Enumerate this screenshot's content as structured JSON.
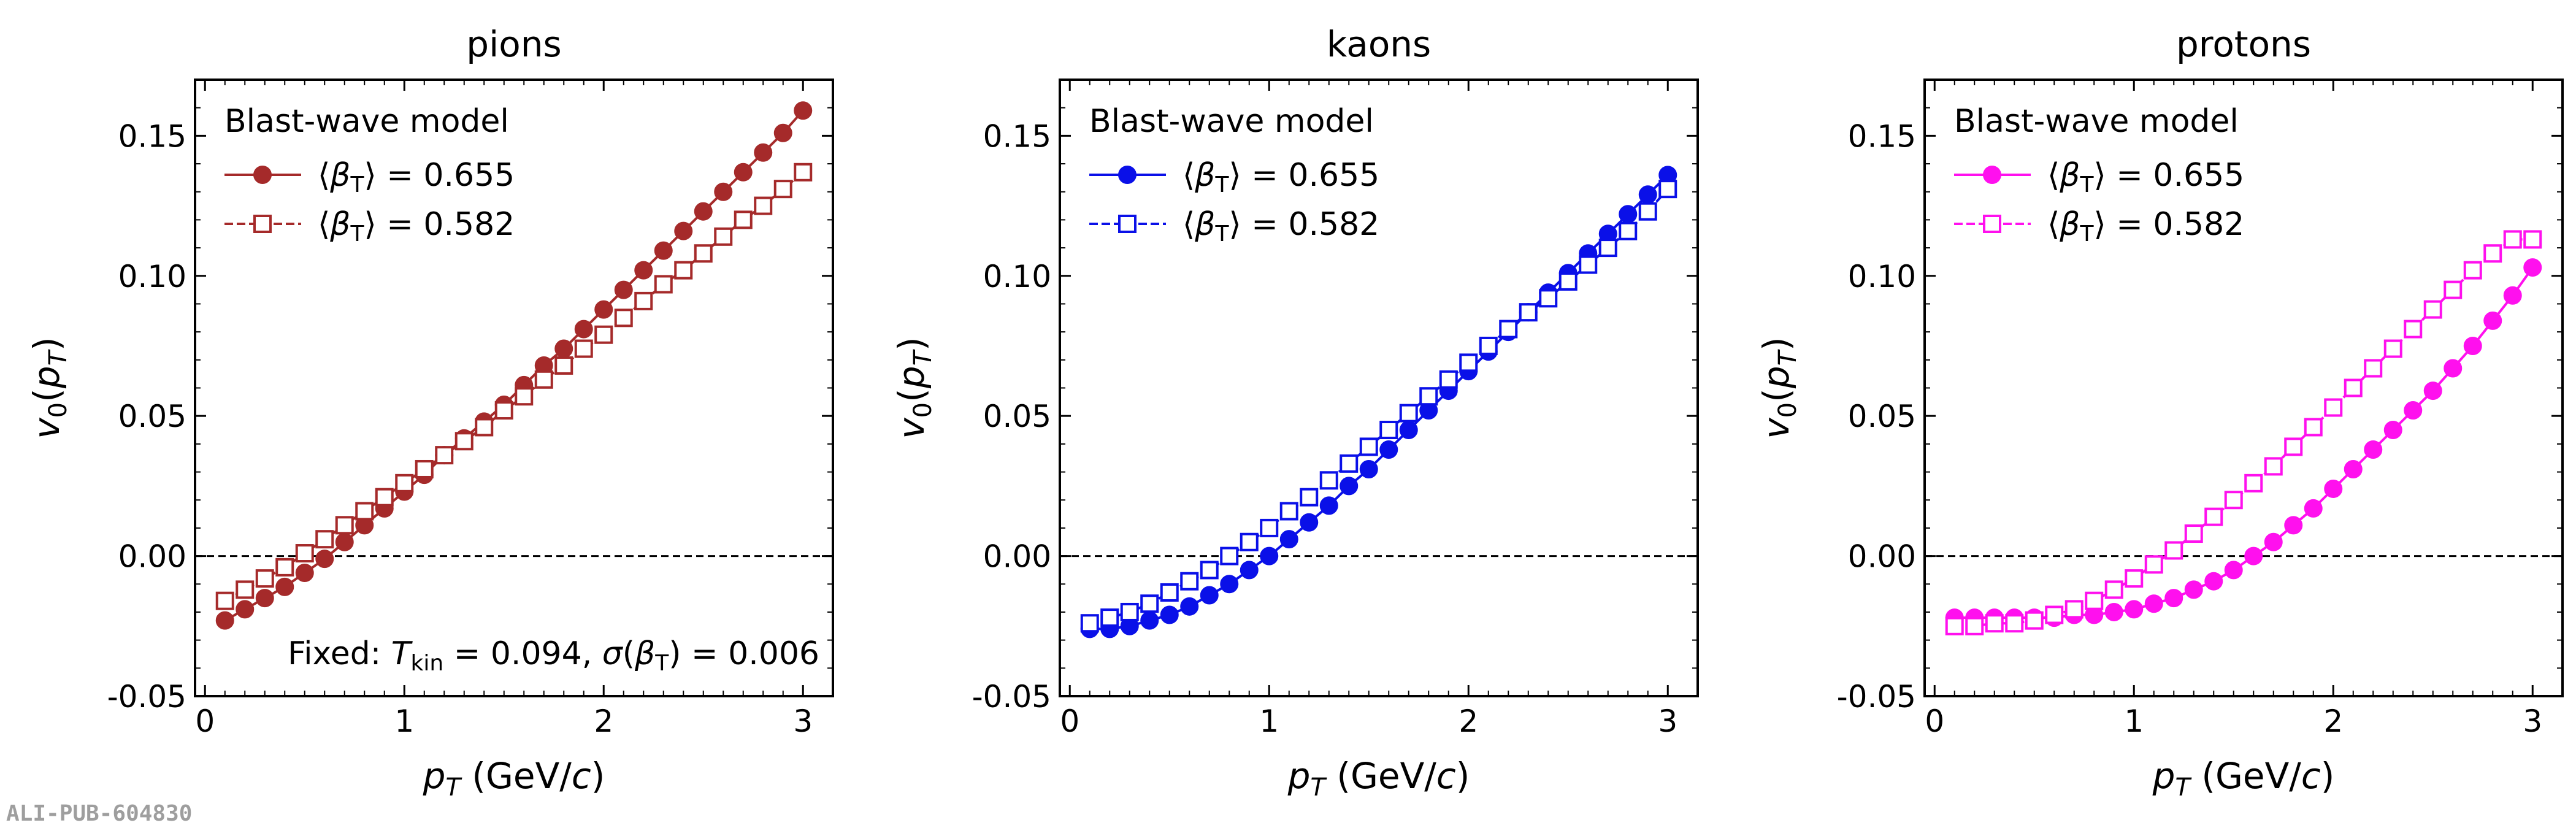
{
  "watermark": "ALI-PUB-604830",
  "chart_data": [
    {
      "type": "line",
      "title": "pions",
      "xlabel_var": "p",
      "xlabel_sub": "T",
      "xlabel_unit_pre": " (GeV/",
      "xlabel_unit_c": "c",
      "xlabel_unit_post": ")",
      "ylabel_var": "v",
      "ylabel_sub": "0",
      "ylabel_paren": "(p",
      "ylabel_paren_sub": "T",
      "ylabel_close": ")",
      "xlim": [
        -0.05,
        3.15
      ],
      "ylim": [
        -0.05,
        0.17
      ],
      "xticks": [
        "0",
        "1",
        "2",
        "3"
      ],
      "yticks": [
        "-0.05",
        "0.00",
        "0.05",
        "0.10",
        "0.15"
      ],
      "color": "#a52a2a",
      "legend_title": "Blast-wave model",
      "annotation": {
        "pre": "Fixed: ",
        "t": "T",
        "t_sub": "kin",
        "mid": " = 0.094, ",
        "sigma": "σ",
        "sig_open": "(β",
        "sig_sub": "T",
        "sig_close": ") = 0.006"
      },
      "x": [
        0.1,
        0.2,
        0.3,
        0.4,
        0.5,
        0.6,
        0.7,
        0.8,
        0.9,
        1.0,
        1.1,
        1.2,
        1.3,
        1.4,
        1.5,
        1.6,
        1.7,
        1.8,
        1.9,
        2.0,
        2.1,
        2.2,
        2.3,
        2.4,
        2.5,
        2.6,
        2.7,
        2.8,
        2.9,
        3.0
      ],
      "series": [
        {
          "name": "⟨βT⟩ = 0.655",
          "label_open": "⟨β",
          "label_sub": "T",
          "label_close": "⟩ = 0.655",
          "marker": "circle-filled",
          "linestyle": "solid",
          "values": [
            -0.023,
            -0.019,
            -0.015,
            -0.011,
            -0.006,
            -0.001,
            0.005,
            0.011,
            0.017,
            0.023,
            0.029,
            0.036,
            0.042,
            0.048,
            0.054,
            0.061,
            0.068,
            0.074,
            0.081,
            0.088,
            0.095,
            0.102,
            0.109,
            0.116,
            0.123,
            0.13,
            0.137,
            0.144,
            0.151,
            0.159
          ]
        },
        {
          "name": "⟨βT⟩ = 0.582",
          "label_open": "⟨β",
          "label_sub": "T",
          "label_close": "⟩ = 0.582",
          "marker": "square-open",
          "linestyle": "dashed",
          "values": [
            -0.016,
            -0.012,
            -0.008,
            -0.004,
            0.001,
            0.006,
            0.011,
            0.016,
            0.021,
            0.026,
            0.031,
            0.036,
            0.041,
            0.046,
            0.052,
            0.057,
            0.063,
            0.068,
            0.074,
            0.079,
            0.085,
            0.091,
            0.097,
            0.102,
            0.108,
            0.114,
            0.12,
            0.125,
            0.131,
            0.137
          ]
        }
      ]
    },
    {
      "type": "line",
      "title": "kaons",
      "xlabel_var": "p",
      "xlabel_sub": "T",
      "xlabel_unit_pre": " (GeV/",
      "xlabel_unit_c": "c",
      "xlabel_unit_post": ")",
      "ylabel_var": "v",
      "ylabel_sub": "0",
      "ylabel_paren": "(p",
      "ylabel_paren_sub": "T",
      "ylabel_close": ")",
      "xlim": [
        -0.05,
        3.15
      ],
      "ylim": [
        -0.05,
        0.17
      ],
      "xticks": [
        "0",
        "1",
        "2",
        "3"
      ],
      "yticks": [
        "-0.05",
        "0.00",
        "0.05",
        "0.10",
        "0.15"
      ],
      "color": "#0a10e8",
      "legend_title": "Blast-wave model",
      "x": [
        0.1,
        0.2,
        0.3,
        0.4,
        0.5,
        0.6,
        0.7,
        0.8,
        0.9,
        1.0,
        1.1,
        1.2,
        1.3,
        1.4,
        1.5,
        1.6,
        1.7,
        1.8,
        1.9,
        2.0,
        2.1,
        2.2,
        2.3,
        2.4,
        2.5,
        2.6,
        2.7,
        2.8,
        2.9,
        3.0
      ],
      "series": [
        {
          "name": "⟨βT⟩ = 0.655",
          "label_open": "⟨β",
          "label_sub": "T",
          "label_close": "⟩ = 0.655",
          "marker": "circle-filled",
          "linestyle": "solid",
          "values": [
            -0.026,
            -0.026,
            -0.025,
            -0.023,
            -0.021,
            -0.018,
            -0.014,
            -0.01,
            -0.005,
            0.0,
            0.006,
            0.012,
            0.018,
            0.025,
            0.031,
            0.038,
            0.045,
            0.052,
            0.059,
            0.066,
            0.073,
            0.08,
            0.087,
            0.094,
            0.101,
            0.108,
            0.115,
            0.122,
            0.129,
            0.136
          ]
        },
        {
          "name": "⟨βT⟩ = 0.582",
          "label_open": "⟨β",
          "label_sub": "T",
          "label_close": "⟩ = 0.582",
          "marker": "square-open",
          "linestyle": "dashed",
          "values": [
            -0.024,
            -0.022,
            -0.02,
            -0.017,
            -0.013,
            -0.009,
            -0.005,
            0.0,
            0.005,
            0.01,
            0.016,
            0.021,
            0.027,
            0.033,
            0.039,
            0.045,
            0.051,
            0.057,
            0.063,
            0.069,
            0.075,
            0.081,
            0.087,
            0.092,
            0.098,
            0.104,
            0.11,
            0.116,
            0.123,
            0.131
          ]
        }
      ]
    },
    {
      "type": "line",
      "title": "protons",
      "xlabel_var": "p",
      "xlabel_sub": "T",
      "xlabel_unit_pre": " (GeV/",
      "xlabel_unit_c": "c",
      "xlabel_unit_post": ")",
      "ylabel_var": "v",
      "ylabel_sub": "0",
      "ylabel_paren": "(p",
      "ylabel_paren_sub": "T",
      "ylabel_close": ")",
      "xlim": [
        -0.05,
        3.15
      ],
      "ylim": [
        -0.05,
        0.17
      ],
      "xticks": [
        "0",
        "1",
        "2",
        "3"
      ],
      "yticks": [
        "-0.05",
        "0.00",
        "0.05",
        "0.10",
        "0.15"
      ],
      "color": "#ff10ee",
      "legend_title": "Blast-wave model",
      "x": [
        0.1,
        0.2,
        0.3,
        0.4,
        0.5,
        0.6,
        0.7,
        0.8,
        0.9,
        1.0,
        1.1,
        1.2,
        1.3,
        1.4,
        1.5,
        1.6,
        1.7,
        1.8,
        1.9,
        2.0,
        2.1,
        2.2,
        2.3,
        2.4,
        2.5,
        2.6,
        2.7,
        2.8,
        2.9,
        3.0
      ],
      "series": [
        {
          "name": "⟨βT⟩ = 0.655",
          "label_open": "⟨β",
          "label_sub": "T",
          "label_close": "⟩ = 0.655",
          "marker": "circle-filled",
          "linestyle": "solid",
          "values": [
            -0.022,
            -0.022,
            -0.022,
            -0.022,
            -0.022,
            -0.022,
            -0.021,
            -0.021,
            -0.02,
            -0.019,
            -0.017,
            -0.015,
            -0.012,
            -0.009,
            -0.005,
            0.0,
            0.005,
            0.011,
            0.017,
            0.024,
            0.031,
            0.038,
            0.045,
            0.052,
            0.059,
            0.067,
            0.075,
            0.084,
            0.093,
            0.103
          ]
        },
        {
          "name": "⟨βT⟩ = 0.582",
          "label_open": "⟨β",
          "label_sub": "T",
          "label_close": "⟩ = 0.582",
          "marker": "square-open",
          "linestyle": "dashed",
          "values": [
            -0.025,
            -0.025,
            -0.024,
            -0.024,
            -0.023,
            -0.021,
            -0.019,
            -0.016,
            -0.012,
            -0.008,
            -0.003,
            0.002,
            0.008,
            0.014,
            0.02,
            0.026,
            0.032,
            0.039,
            0.046,
            0.053,
            0.06,
            0.067,
            0.074,
            0.081,
            0.088,
            0.095,
            0.102,
            0.108,
            0.113,
            0.113
          ]
        }
      ]
    }
  ]
}
